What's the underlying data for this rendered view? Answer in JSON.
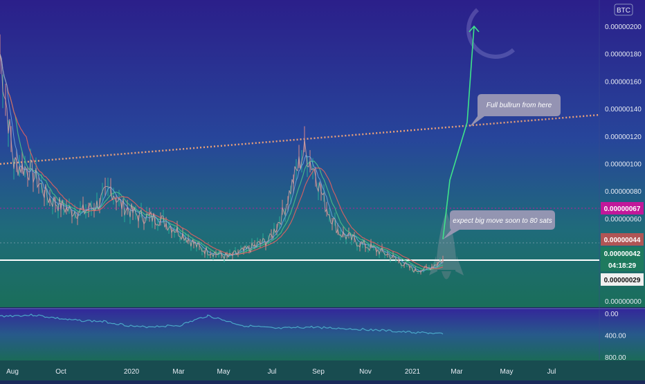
{
  "chart_data": [
    {
      "type": "line",
      "title": "",
      "currency": "BTC",
      "x": [
        "Aug",
        "Oct",
        "2020",
        "Mar",
        "May",
        "Jul",
        "Sep",
        "Nov",
        "2021",
        "Mar",
        "May",
        "Jul"
      ],
      "ylim": [
        0,
        2e-06
      ],
      "y_ticks": [
        "0.00000200",
        "0.00000180",
        "0.00000160",
        "0.00000140",
        "0.00000120",
        "0.00000100",
        "0.00000080",
        "0.00000060",
        "0.00000000"
      ],
      "grid": false,
      "legend": "none",
      "series": [
        {
          "values": [
            [
              0,
              1.8e-06
            ],
            [
              20,
              1e-06
            ],
            [
              45,
              9.5e-07
            ],
            [
              70,
              7.5e-07
            ],
            [
              100,
              6.6e-07
            ],
            [
              120,
              6.5e-07
            ],
            [
              140,
              7e-07
            ],
            [
              160,
              8.2e-07
            ],
            [
              175,
              7e-07
            ],
            [
              200,
              6.2e-07
            ],
            [
              230,
              6e-07
            ],
            [
              260,
              5e-07
            ],
            [
              290,
              3.8e-07
            ],
            [
              330,
              3.2e-07
            ],
            [
              360,
              3.8e-07
            ],
            [
              390,
              4.5e-07
            ],
            [
              410,
              6.5e-07
            ],
            [
              425,
              9e-07
            ],
            [
              440,
              1.1e-06
            ],
            [
              455,
              9.5e-07
            ],
            [
              470,
              7e-07
            ],
            [
              490,
              5e-07
            ],
            [
              520,
              4.2e-07
            ],
            [
              560,
              3.4e-07
            ],
            [
              600,
              2.2e-07
            ],
            [
              620,
              2.4e-07
            ],
            [
              640,
              3e-07
            ]
          ]
        }
      ],
      "price_badges": [
        {
          "label": "0.00000067",
          "color": "#c2189a",
          "value": 6.7e-07
        },
        {
          "label": "0.00000044",
          "color": "#b05555",
          "value": 4.4e-07
        },
        {
          "label": "0.00000042",
          "color": "#1e7a5e",
          "value": 4.2e-07
        },
        {
          "label": "04:18:29",
          "color": "#1e7a5e",
          "value": 3.4e-07
        },
        {
          "label": "0.00000029",
          "color": "#f0f0f0",
          "text_color": "#111111",
          "value": 2.9e-07
        }
      ],
      "annotations": [
        {
          "text": "Full bullrun from here"
        },
        {
          "text": "expect big move soon to 80 sats"
        }
      ],
      "projection": [
        [
          640,
          4.5e-07
        ],
        [
          650,
          8.8e-07
        ],
        [
          675,
          1.3e-06
        ],
        [
          685,
          2e-06
        ]
      ]
    },
    {
      "type": "line",
      "title": "",
      "ylim": [
        0,
        800
      ],
      "y_ticks": [
        "0.00",
        "400.00",
        "800.00"
      ],
      "series": [
        {
          "values": [
            [
              0,
              50
            ],
            [
              50,
              30
            ],
            [
              100,
              120
            ],
            [
              150,
              150
            ],
            [
              200,
              250
            ],
            [
              260,
              220
            ],
            [
              300,
              40
            ],
            [
              350,
              220
            ],
            [
              400,
              280
            ],
            [
              450,
              250
            ],
            [
              500,
              280
            ],
            [
              540,
              300
            ],
            [
              580,
              340
            ],
            [
              620,
              360
            ],
            [
              640,
              380
            ]
          ]
        }
      ]
    }
  ],
  "colors": {
    "price_line": "#d4a5a5",
    "ma_red": "#e06060",
    "ma_green": "#4ac08a",
    "ma_blue": "#6ea4e0",
    "projection": "#3fe58a",
    "support": "#ffffff",
    "resistance_dots": "#e9a07a",
    "osc_line": "#4aa8c8"
  },
  "icons": {
    "moon": "crescent-moon-icon",
    "rocket": "rocket-icon"
  }
}
